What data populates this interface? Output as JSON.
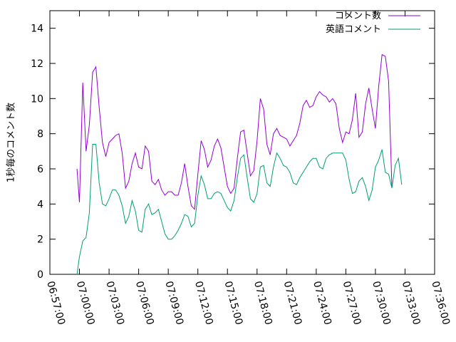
{
  "chart_data": {
    "type": "line",
    "ylabel": "1秒毎のコメント数",
    "xlabel": "",
    "ylim": [
      0,
      15
    ],
    "xlim": [
      "06:57:00",
      "07:36:00"
    ],
    "grid": false,
    "legend_position": "top-right",
    "y_ticks": [
      "0",
      "2",
      "4",
      "6",
      "8",
      "10",
      "12",
      "14"
    ],
    "x_ticks": [
      "06:57:00",
      "07:00:00",
      "07:03:00",
      "07:06:00",
      "07:09:00",
      "07:12:00",
      "07:15:00",
      "07:18:00",
      "07:21:00",
      "07:24:00",
      "07:27:00",
      "07:30:00",
      "07:33:00",
      "07:36:00"
    ],
    "series": [
      {
        "name": "コメント数",
        "color": "#9400d3",
        "points": [
          [
            "06:59:45",
            6.0
          ],
          [
            "07:00:00",
            4.1
          ],
          [
            "07:00:20",
            10.9
          ],
          [
            "07:00:40",
            7.0
          ],
          [
            "07:01:00",
            8.5
          ],
          [
            "07:01:20",
            11.5
          ],
          [
            "07:01:40",
            11.8
          ],
          [
            "07:02:00",
            9.5
          ],
          [
            "07:02:20",
            7.5
          ],
          [
            "07:02:40",
            6.7
          ],
          [
            "07:03:00",
            7.5
          ],
          [
            "07:03:20",
            7.7
          ],
          [
            "07:03:40",
            7.9
          ],
          [
            "07:04:00",
            8.0
          ],
          [
            "07:04:20",
            6.9
          ],
          [
            "07:04:40",
            4.9
          ],
          [
            "07:05:00",
            5.3
          ],
          [
            "07:05:20",
            6.3
          ],
          [
            "07:05:40",
            6.9
          ],
          [
            "07:06:00",
            6.1
          ],
          [
            "07:06:20",
            6.0
          ],
          [
            "07:06:40",
            7.3
          ],
          [
            "07:07:00",
            7.0
          ],
          [
            "07:07:20",
            5.3
          ],
          [
            "07:07:40",
            5.1
          ],
          [
            "07:08:00",
            5.4
          ],
          [
            "07:08:20",
            4.8
          ],
          [
            "07:08:40",
            4.5
          ],
          [
            "07:09:00",
            4.7
          ],
          [
            "07:09:20",
            4.7
          ],
          [
            "07:09:40",
            4.5
          ],
          [
            "07:10:00",
            4.5
          ],
          [
            "07:10:20",
            5.2
          ],
          [
            "07:10:40",
            6.3
          ],
          [
            "07:11:00",
            5.0
          ],
          [
            "07:11:20",
            3.9
          ],
          [
            "07:11:40",
            3.7
          ],
          [
            "07:12:00",
            5.7
          ],
          [
            "07:12:20",
            7.6
          ],
          [
            "07:12:40",
            7.1
          ],
          [
            "07:13:00",
            6.1
          ],
          [
            "07:13:20",
            6.5
          ],
          [
            "07:13:40",
            7.3
          ],
          [
            "07:14:00",
            7.7
          ],
          [
            "07:14:20",
            7.2
          ],
          [
            "07:14:40",
            6.1
          ],
          [
            "07:15:00",
            5.0
          ],
          [
            "07:15:20",
            4.6
          ],
          [
            "07:15:40",
            4.9
          ],
          [
            "07:16:00",
            6.6
          ],
          [
            "07:16:20",
            8.1
          ],
          [
            "07:16:40",
            8.2
          ],
          [
            "07:17:00",
            6.9
          ],
          [
            "07:17:20",
            5.6
          ],
          [
            "07:17:40",
            5.9
          ],
          [
            "07:18:00",
            7.6
          ],
          [
            "07:18:20",
            10.0
          ],
          [
            "07:18:40",
            9.4
          ],
          [
            "07:19:00",
            7.4
          ],
          [
            "07:19:20",
            6.8
          ],
          [
            "07:19:40",
            8.0
          ],
          [
            "07:20:00",
            8.3
          ],
          [
            "07:20:20",
            7.9
          ],
          [
            "07:20:40",
            7.8
          ],
          [
            "07:21:00",
            7.7
          ],
          [
            "07:21:20",
            7.3
          ],
          [
            "07:21:40",
            7.6
          ],
          [
            "07:22:00",
            7.9
          ],
          [
            "07:22:20",
            8.6
          ],
          [
            "07:22:40",
            9.6
          ],
          [
            "07:23:00",
            9.9
          ],
          [
            "07:23:20",
            9.5
          ],
          [
            "07:23:40",
            9.6
          ],
          [
            "07:24:00",
            10.1
          ],
          [
            "07:24:20",
            10.4
          ],
          [
            "07:24:40",
            10.2
          ],
          [
            "07:25:00",
            10.1
          ],
          [
            "07:25:20",
            9.8
          ],
          [
            "07:25:40",
            10.0
          ],
          [
            "07:26:00",
            9.7
          ],
          [
            "07:26:20",
            8.3
          ],
          [
            "07:26:40",
            7.5
          ],
          [
            "07:27:00",
            8.1
          ],
          [
            "07:27:20",
            8.0
          ],
          [
            "07:27:40",
            8.8
          ],
          [
            "07:28:00",
            10.3
          ],
          [
            "07:28:20",
            7.8
          ],
          [
            "07:28:40",
            8.1
          ],
          [
            "07:29:00",
            9.7
          ],
          [
            "07:29:20",
            10.6
          ],
          [
            "07:29:40",
            9.4
          ],
          [
            "07:30:00",
            8.3
          ],
          [
            "07:30:20",
            10.7
          ],
          [
            "07:30:40",
            12.5
          ],
          [
            "07:31:00",
            12.4
          ],
          [
            "07:31:20",
            11.0
          ],
          [
            "07:31:40",
            5.0
          ]
        ]
      },
      {
        "name": "英語コメント",
        "color": "#009e73",
        "points": [
          [
            "06:59:45",
            0.0
          ],
          [
            "07:00:00",
            1.0
          ],
          [
            "07:00:20",
            1.9
          ],
          [
            "07:00:40",
            2.1
          ],
          [
            "07:01:00",
            3.5
          ],
          [
            "07:01:20",
            7.4
          ],
          [
            "07:01:40",
            7.4
          ],
          [
            "07:02:00",
            5.2
          ],
          [
            "07:02:20",
            4.0
          ],
          [
            "07:02:40",
            3.9
          ],
          [
            "07:03:00",
            4.3
          ],
          [
            "07:03:20",
            4.8
          ],
          [
            "07:03:40",
            4.8
          ],
          [
            "07:04:00",
            4.5
          ],
          [
            "07:04:20",
            3.9
          ],
          [
            "07:04:40",
            2.9
          ],
          [
            "07:05:00",
            3.3
          ],
          [
            "07:05:20",
            4.2
          ],
          [
            "07:05:40",
            3.6
          ],
          [
            "07:06:00",
            2.5
          ],
          [
            "07:06:20",
            2.4
          ],
          [
            "07:06:40",
            3.7
          ],
          [
            "07:07:00",
            4.0
          ],
          [
            "07:07:20",
            3.4
          ],
          [
            "07:07:40",
            3.5
          ],
          [
            "07:08:00",
            3.7
          ],
          [
            "07:08:20",
            3.0
          ],
          [
            "07:08:40",
            2.3
          ],
          [
            "07:09:00",
            2.0
          ],
          [
            "07:09:20",
            2.0
          ],
          [
            "07:09:40",
            2.2
          ],
          [
            "07:10:00",
            2.5
          ],
          [
            "07:10:20",
            2.9
          ],
          [
            "07:10:40",
            3.4
          ],
          [
            "07:11:00",
            3.3
          ],
          [
            "07:11:20",
            2.7
          ],
          [
            "07:11:40",
            2.9
          ],
          [
            "07:12:00",
            4.5
          ],
          [
            "07:12:20",
            5.6
          ],
          [
            "07:12:40",
            5.1
          ],
          [
            "07:13:00",
            4.3
          ],
          [
            "07:13:20",
            4.3
          ],
          [
            "07:13:40",
            4.6
          ],
          [
            "07:14:00",
            4.7
          ],
          [
            "07:14:20",
            4.6
          ],
          [
            "07:14:40",
            4.2
          ],
          [
            "07:15:00",
            3.8
          ],
          [
            "07:15:20",
            3.6
          ],
          [
            "07:15:40",
            4.2
          ],
          [
            "07:16:00",
            5.5
          ],
          [
            "07:16:20",
            6.6
          ],
          [
            "07:16:40",
            6.8
          ],
          [
            "07:17:00",
            5.5
          ],
          [
            "07:17:20",
            4.3
          ],
          [
            "07:17:40",
            4.1
          ],
          [
            "07:18:00",
            4.6
          ],
          [
            "07:18:20",
            6.1
          ],
          [
            "07:18:40",
            6.2
          ],
          [
            "07:19:00",
            5.2
          ],
          [
            "07:19:20",
            5.0
          ],
          [
            "07:19:40",
            6.1
          ],
          [
            "07:20:00",
            6.9
          ],
          [
            "07:20:20",
            6.6
          ],
          [
            "07:20:40",
            6.2
          ],
          [
            "07:21:00",
            6.1
          ],
          [
            "07:21:20",
            5.8
          ],
          [
            "07:21:40",
            5.2
          ],
          [
            "07:22:00",
            5.1
          ],
          [
            "07:22:20",
            5.5
          ],
          [
            "07:22:40",
            5.8
          ],
          [
            "07:23:00",
            6.1
          ],
          [
            "07:23:20",
            6.4
          ],
          [
            "07:23:40",
            6.6
          ],
          [
            "07:24:00",
            6.6
          ],
          [
            "07:24:20",
            6.1
          ],
          [
            "07:24:40",
            6.0
          ],
          [
            "07:25:00",
            6.6
          ],
          [
            "07:25:20",
            6.8
          ],
          [
            "07:25:40",
            6.9
          ],
          [
            "07:26:00",
            6.9
          ],
          [
            "07:26:20",
            6.9
          ],
          [
            "07:26:40",
            6.9
          ],
          [
            "07:27:00",
            6.5
          ],
          [
            "07:27:20",
            5.4
          ],
          [
            "07:27:40",
            4.6
          ],
          [
            "07:28:00",
            4.7
          ],
          [
            "07:28:20",
            5.3
          ],
          [
            "07:28:40",
            5.5
          ],
          [
            "07:29:00",
            5.0
          ],
          [
            "07:29:20",
            4.2
          ],
          [
            "07:29:40",
            4.8
          ],
          [
            "07:30:00",
            6.1
          ],
          [
            "07:30:20",
            6.5
          ],
          [
            "07:30:40",
            7.1
          ],
          [
            "07:31:00",
            5.8
          ],
          [
            "07:31:20",
            5.7
          ],
          [
            "07:31:40",
            4.9
          ],
          [
            "07:32:00",
            6.2
          ],
          [
            "07:32:20",
            6.6
          ],
          [
            "07:32:40",
            5.1
          ]
        ]
      }
    ]
  }
}
